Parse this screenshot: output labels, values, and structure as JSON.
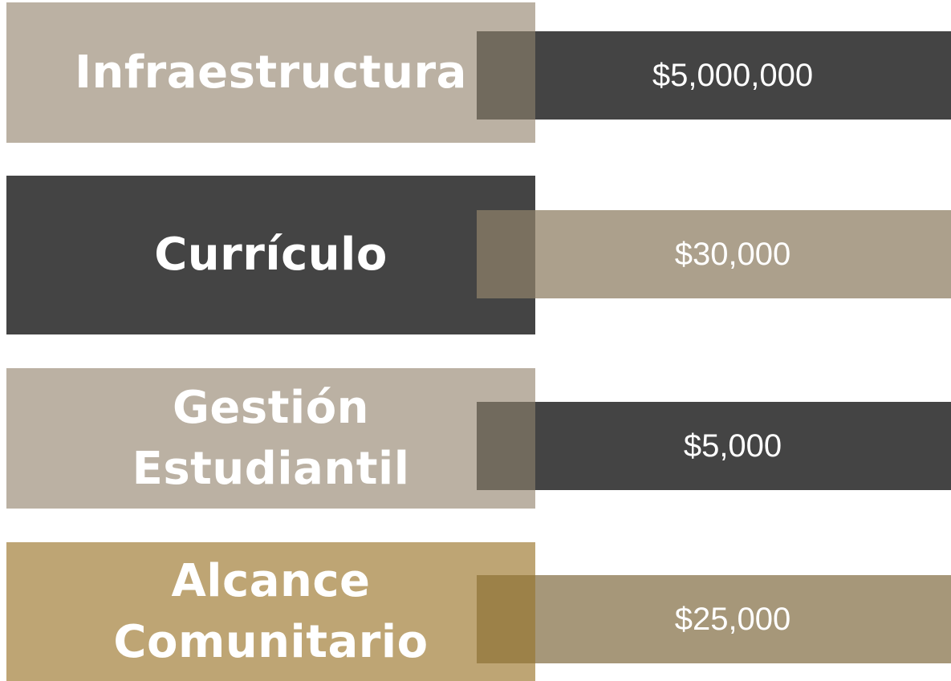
{
  "items": [
    {
      "label": [
        "Infraestructura"
      ],
      "amount": "$5,000,000"
    },
    {
      "label": [
        "Currículo"
      ],
      "amount": "$30,000"
    },
    {
      "label": [
        "Gestión",
        "Estudiantil"
      ],
      "amount": "$5,000"
    },
    {
      "label": [
        "Alcance",
        "Comunitario"
      ],
      "amount": "$25,000"
    }
  ]
}
